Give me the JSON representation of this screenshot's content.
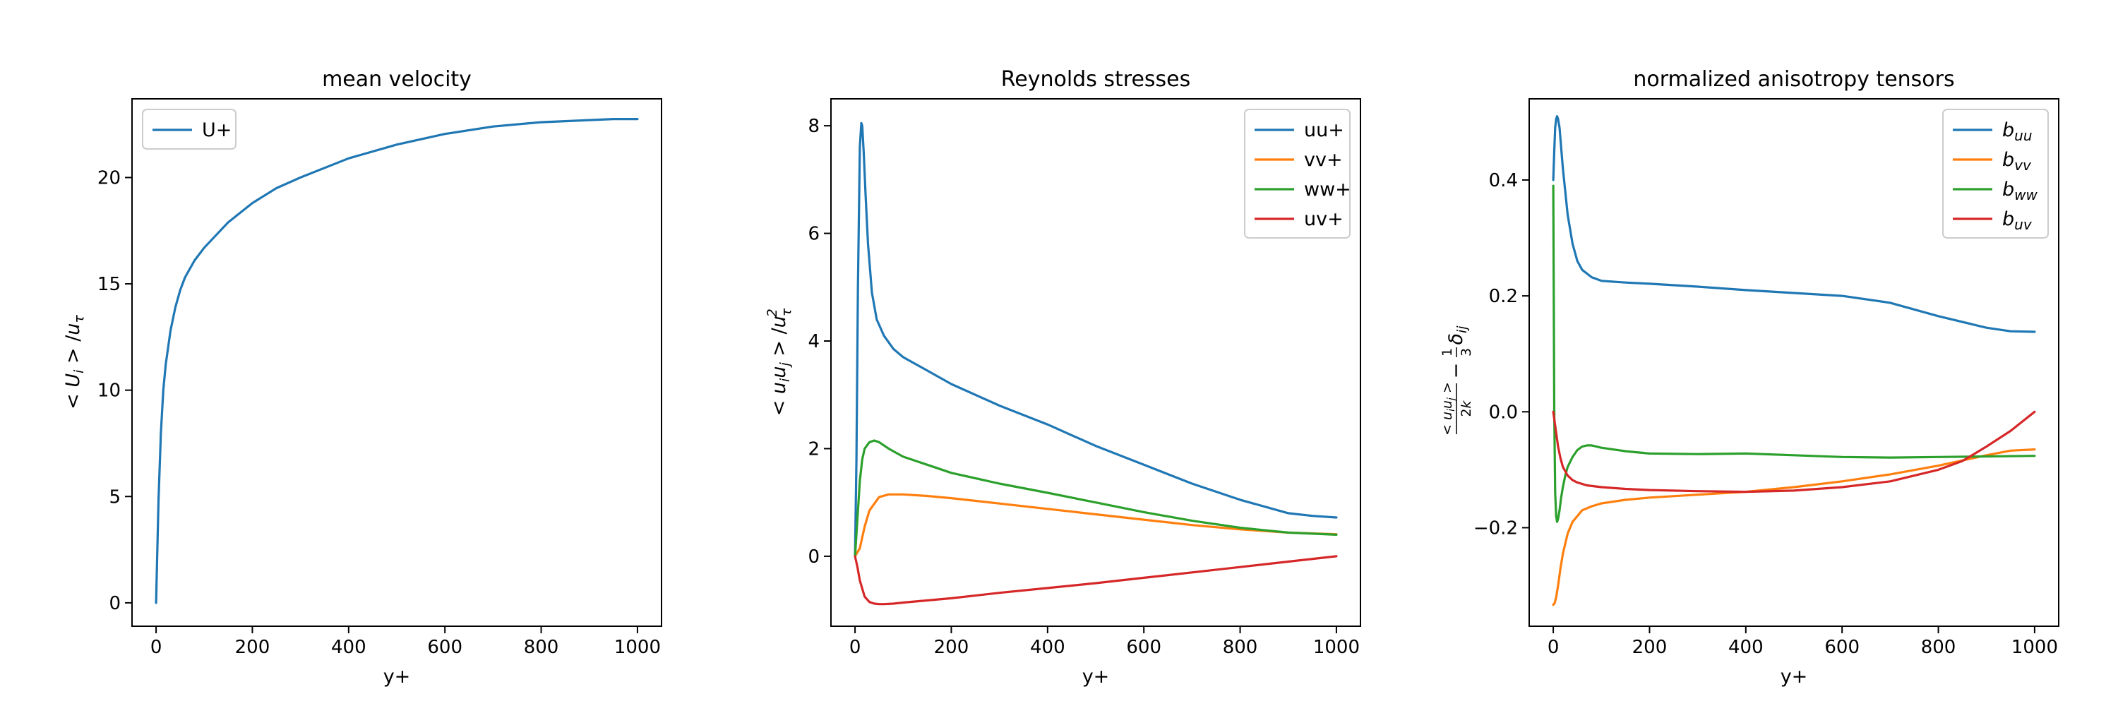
{
  "chart_data": [
    {
      "type": "line",
      "title": "mean velocity",
      "xlabel": "y+",
      "ylabel": "< U_i > / u_τ",
      "xlim": [
        -50,
        1050
      ],
      "ylim": [
        -1.1,
        23.7
      ],
      "xticks": [
        0,
        200,
        400,
        600,
        800,
        1000
      ],
      "yticks": [
        0,
        5,
        10,
        15,
        20
      ],
      "xtick_labels": [
        "0",
        "200",
        "400",
        "600",
        "800",
        "1000"
      ],
      "ytick_labels": [
        "0",
        "5",
        "10",
        "15",
        "20"
      ],
      "legend_position": "upper left",
      "grid": false,
      "series": [
        {
          "name": "U+",
          "color": "#1f77b4",
          "x": [
            0,
            2,
            5,
            10,
            15,
            20,
            30,
            40,
            50,
            60,
            80,
            100,
            150,
            200,
            250,
            300,
            400,
            500,
            600,
            700,
            800,
            900,
            950,
            1000
          ],
          "y": [
            0,
            2,
            4.8,
            8,
            10,
            11.2,
            12.8,
            13.9,
            14.7,
            15.3,
            16.1,
            16.7,
            17.9,
            18.8,
            19.5,
            20.0,
            20.9,
            21.55,
            22.05,
            22.4,
            22.6,
            22.7,
            22.75,
            22.75
          ]
        }
      ]
    },
    {
      "type": "line",
      "title": "Reynolds stresses",
      "xlabel": "y+",
      "ylabel": "< u_i u_j > / u_τ^2",
      "xlim": [
        -50,
        1050
      ],
      "ylim": [
        -1.3,
        8.5
      ],
      "xticks": [
        0,
        200,
        400,
        600,
        800,
        1000
      ],
      "yticks": [
        0,
        2,
        4,
        6,
        8
      ],
      "xtick_labels": [
        "0",
        "200",
        "400",
        "600",
        "800",
        "1000"
      ],
      "ytick_labels": [
        "0",
        "2",
        "4",
        "6",
        "8"
      ],
      "legend_position": "upper right",
      "grid": false,
      "series": [
        {
          "name": "uu+",
          "color": "#1f77b4",
          "x": [
            0,
            3,
            6,
            10,
            13,
            15,
            18,
            22,
            27,
            35,
            45,
            60,
            80,
            100,
            150,
            200,
            300,
            400,
            500,
            600,
            700,
            800,
            900,
            950,
            1000
          ],
          "y": [
            0,
            1.8,
            5.0,
            7.6,
            8.05,
            8.0,
            7.5,
            6.7,
            5.8,
            4.9,
            4.4,
            4.1,
            3.85,
            3.7,
            3.45,
            3.2,
            2.8,
            2.45,
            2.05,
            1.7,
            1.35,
            1.05,
            0.8,
            0.75,
            0.72
          ]
        },
        {
          "name": "vv+",
          "color": "#ff7f0e",
          "x": [
            0,
            10,
            20,
            30,
            50,
            70,
            100,
            150,
            200,
            300,
            400,
            500,
            600,
            700,
            800,
            900,
            1000
          ],
          "y": [
            0,
            0.15,
            0.55,
            0.85,
            1.1,
            1.15,
            1.15,
            1.12,
            1.08,
            0.98,
            0.88,
            0.78,
            0.68,
            0.58,
            0.5,
            0.44,
            0.41
          ]
        },
        {
          "name": "ww+",
          "color": "#2ca02c",
          "x": [
            0,
            5,
            10,
            15,
            20,
            30,
            40,
            50,
            70,
            100,
            150,
            200,
            300,
            400,
            500,
            600,
            700,
            800,
            900,
            1000
          ],
          "y": [
            0,
            0.7,
            1.4,
            1.8,
            2.0,
            2.12,
            2.15,
            2.12,
            2.0,
            1.85,
            1.7,
            1.55,
            1.35,
            1.18,
            1.0,
            0.82,
            0.66,
            0.53,
            0.44,
            0.4
          ]
        },
        {
          "name": "uv+",
          "color": "#d62728",
          "x": [
            0,
            5,
            10,
            20,
            30,
            40,
            50,
            60,
            80,
            100,
            200,
            300,
            400,
            500,
            600,
            700,
            800,
            900,
            1000
          ],
          "y": [
            0,
            -0.2,
            -0.45,
            -0.75,
            -0.85,
            -0.88,
            -0.89,
            -0.89,
            -0.88,
            -0.86,
            -0.78,
            -0.68,
            -0.59,
            -0.5,
            -0.4,
            -0.3,
            -0.2,
            -0.1,
            0
          ]
        }
      ]
    },
    {
      "type": "line",
      "title": "normalized anisotropy tensors",
      "xlabel": "y+",
      "ylabel": "< u_i u_j > / 2k − 1/3 δ_ij",
      "xlim": [
        -50,
        1050
      ],
      "ylim": [
        -0.37,
        0.54
      ],
      "xticks": [
        0,
        200,
        400,
        600,
        800,
        1000
      ],
      "yticks": [
        -0.2,
        0.0,
        0.2,
        0.4
      ],
      "xtick_labels": [
        "0",
        "200",
        "400",
        "600",
        "800",
        "1000"
      ],
      "ytick_labels": [
        "−0.2",
        "0.0",
        "0.2",
        "0.4"
      ],
      "legend_position": "upper right",
      "grid": false,
      "series": [
        {
          "name": "b_uu",
          "color": "#1f77b4",
          "x": [
            0,
            2,
            4,
            6,
            8,
            10,
            13,
            16,
            20,
            25,
            30,
            40,
            50,
            60,
            80,
            100,
            150,
            200,
            300,
            400,
            500,
            600,
            700,
            800,
            900,
            950,
            1000
          ],
          "y": [
            0.4,
            0.45,
            0.49,
            0.505,
            0.51,
            0.505,
            0.49,
            0.46,
            0.42,
            0.38,
            0.34,
            0.29,
            0.26,
            0.245,
            0.232,
            0.226,
            0.223,
            0.221,
            0.216,
            0.21,
            0.205,
            0.2,
            0.188,
            0.165,
            0.145,
            0.139,
            0.138
          ]
        },
        {
          "name": "b_vv",
          "color": "#ff7f0e",
          "x": [
            0,
            3,
            6,
            10,
            15,
            20,
            30,
            40,
            60,
            80,
            100,
            150,
            200,
            300,
            400,
            500,
            600,
            700,
            800,
            900,
            950,
            1000
          ],
          "y": [
            -0.333,
            -0.33,
            -0.32,
            -0.3,
            -0.27,
            -0.245,
            -0.21,
            -0.19,
            -0.17,
            -0.163,
            -0.158,
            -0.152,
            -0.148,
            -0.143,
            -0.138,
            -0.13,
            -0.12,
            -0.108,
            -0.093,
            -0.075,
            -0.067,
            -0.065
          ]
        },
        {
          "name": "b_ww",
          "color": "#2ca02c",
          "x": [
            0,
            1,
            2,
            4,
            6,
            8,
            10,
            13,
            16,
            20,
            25,
            30,
            40,
            50,
            60,
            70,
            80,
            100,
            150,
            200,
            300,
            400,
            500,
            600,
            700,
            800,
            900,
            1000
          ],
          "y": [
            0.39,
            0.2,
            0.0,
            -0.14,
            -0.18,
            -0.19,
            -0.185,
            -0.17,
            -0.15,
            -0.13,
            -0.11,
            -0.095,
            -0.078,
            -0.066,
            -0.06,
            -0.058,
            -0.058,
            -0.062,
            -0.068,
            -0.072,
            -0.073,
            -0.072,
            -0.075,
            -0.078,
            -0.079,
            -0.078,
            -0.077,
            -0.076
          ]
        },
        {
          "name": "b_uv",
          "color": "#d62728",
          "x": [
            0,
            5,
            10,
            15,
            20,
            30,
            40,
            50,
            70,
            100,
            150,
            200,
            300,
            400,
            500,
            600,
            700,
            800,
            850,
            900,
            950,
            1000
          ],
          "y": [
            0,
            -0.03,
            -0.06,
            -0.08,
            -0.095,
            -0.11,
            -0.118,
            -0.122,
            -0.127,
            -0.13,
            -0.133,
            -0.135,
            -0.137,
            -0.138,
            -0.136,
            -0.13,
            -0.12,
            -0.1,
            -0.085,
            -0.06,
            -0.033,
            0
          ]
        }
      ]
    }
  ]
}
